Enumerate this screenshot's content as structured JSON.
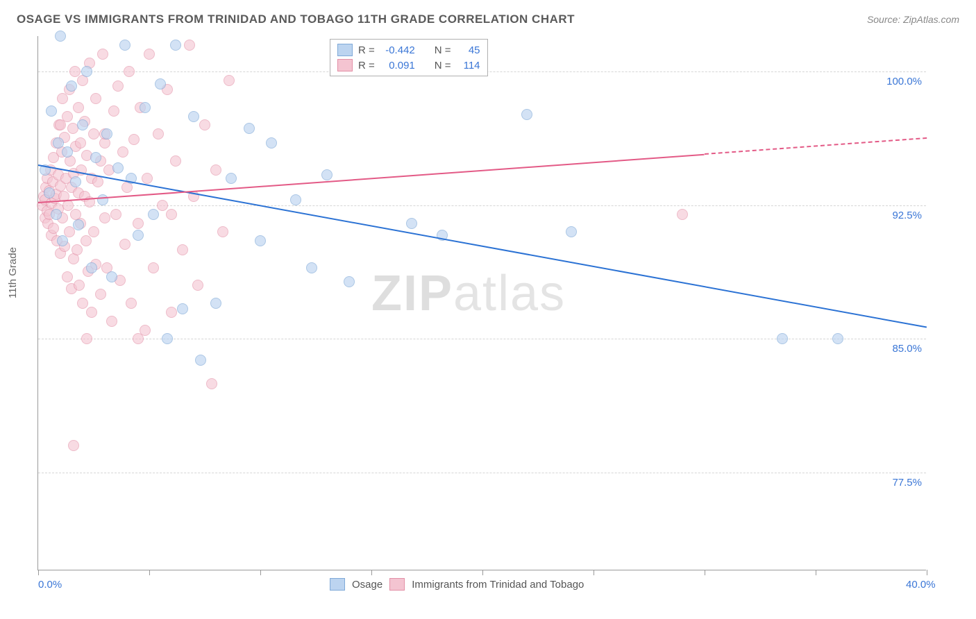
{
  "title": "OSAGE VS IMMIGRANTS FROM TRINIDAD AND TOBAGO 11TH GRADE CORRELATION CHART",
  "source_label": "Source: ZipAtlas.com",
  "yaxis_label": "11th Grade",
  "watermark_1": "ZIP",
  "watermark_2": "atlas",
  "chart": {
    "type": "scatter",
    "xlim": [
      0,
      40
    ],
    "ylim": [
      72,
      102
    ],
    "x_ticks": [
      0,
      5,
      10,
      15,
      20,
      25,
      30,
      35,
      40
    ],
    "x_tick_labels": {
      "0": "0.0%",
      "40": "40.0%"
    },
    "y_gridlines": [
      77.5,
      85.0,
      92.5,
      100.0
    ],
    "y_tick_labels": [
      "77.5%",
      "85.0%",
      "92.5%",
      "100.0%"
    ],
    "background_color": "#ffffff",
    "grid_color": "#d5d5d5",
    "axis_color": "#999999",
    "label_color": "#3a76d6",
    "marker_radius": 8,
    "series": [
      {
        "name": "Osage",
        "fill": "#bcd4f0",
        "stroke": "#7fa9d8",
        "fill_opacity": 0.65,
        "R": "-0.442",
        "N": "45",
        "trend": {
          "x1": 0,
          "y1": 94.8,
          "x2": 40,
          "y2": 85.7,
          "color": "#2b72d4",
          "width": 2
        },
        "points": [
          [
            0.3,
            94.5
          ],
          [
            0.5,
            93.2
          ],
          [
            0.6,
            97.8
          ],
          [
            0.8,
            92.0
          ],
          [
            0.9,
            96.0
          ],
          [
            1.0,
            102.0
          ],
          [
            1.1,
            90.5
          ],
          [
            1.3,
            95.5
          ],
          [
            1.5,
            99.2
          ],
          [
            1.7,
            93.8
          ],
          [
            1.8,
            91.4
          ],
          [
            2.0,
            97.0
          ],
          [
            2.2,
            100.0
          ],
          [
            2.4,
            89.0
          ],
          [
            2.6,
            95.2
          ],
          [
            2.9,
            92.8
          ],
          [
            3.1,
            96.5
          ],
          [
            3.3,
            88.5
          ],
          [
            3.6,
            94.6
          ],
          [
            3.9,
            101.5
          ],
          [
            4.2,
            94.0
          ],
          [
            4.5,
            90.8
          ],
          [
            4.8,
            98.0
          ],
          [
            5.2,
            92.0
          ],
          [
            5.5,
            99.3
          ],
          [
            5.8,
            85.0
          ],
          [
            6.2,
            101.5
          ],
          [
            6.5,
            86.7
          ],
          [
            7.0,
            97.5
          ],
          [
            7.3,
            83.8
          ],
          [
            8.0,
            87.0
          ],
          [
            8.7,
            94.0
          ],
          [
            9.5,
            96.8
          ],
          [
            10.0,
            90.5
          ],
          [
            10.5,
            96.0
          ],
          [
            11.6,
            92.8
          ],
          [
            12.3,
            89.0
          ],
          [
            13.0,
            94.2
          ],
          [
            14.0,
            88.2
          ],
          [
            16.8,
            91.5
          ],
          [
            18.2,
            90.8
          ],
          [
            22.0,
            97.6
          ],
          [
            24.0,
            91.0
          ],
          [
            33.5,
            85.0
          ],
          [
            36.0,
            85.0
          ]
        ]
      },
      {
        "name": "Immigrants from Trinidad and Tobago",
        "fill": "#f4c4d1",
        "stroke": "#e38fa6",
        "fill_opacity": 0.6,
        "R": "0.091",
        "N": "114",
        "trend": {
          "x1": 0,
          "y1": 92.7,
          "x2": 40,
          "y2": 96.3,
          "color": "#e35a86",
          "width": 2,
          "dash_from_x": 30
        },
        "points": [
          [
            0.2,
            92.5
          ],
          [
            0.25,
            93.0
          ],
          [
            0.3,
            92.8
          ],
          [
            0.3,
            91.8
          ],
          [
            0.35,
            93.5
          ],
          [
            0.4,
            92.2
          ],
          [
            0.4,
            94.0
          ],
          [
            0.45,
            91.5
          ],
          [
            0.5,
            93.3
          ],
          [
            0.5,
            92.0
          ],
          [
            0.55,
            94.5
          ],
          [
            0.6,
            92.6
          ],
          [
            0.6,
            90.8
          ],
          [
            0.65,
            93.8
          ],
          [
            0.7,
            95.2
          ],
          [
            0.7,
            91.2
          ],
          [
            0.75,
            92.9
          ],
          [
            0.8,
            96.0
          ],
          [
            0.8,
            93.1
          ],
          [
            0.85,
            90.5
          ],
          [
            0.9,
            94.2
          ],
          [
            0.9,
            92.3
          ],
          [
            0.95,
            97.0
          ],
          [
            1.0,
            93.6
          ],
          [
            1.0,
            89.8
          ],
          [
            1.05,
            95.5
          ],
          [
            1.1,
            91.8
          ],
          [
            1.1,
            98.5
          ],
          [
            1.15,
            93.0
          ],
          [
            1.2,
            90.2
          ],
          [
            1.2,
            96.3
          ],
          [
            1.25,
            94.0
          ],
          [
            1.3,
            88.5
          ],
          [
            1.3,
            97.5
          ],
          [
            1.35,
            92.5
          ],
          [
            1.4,
            99.0
          ],
          [
            1.4,
            91.0
          ],
          [
            1.45,
            95.0
          ],
          [
            1.5,
            93.5
          ],
          [
            1.5,
            87.8
          ],
          [
            1.55,
            96.8
          ],
          [
            1.6,
            94.3
          ],
          [
            1.6,
            89.5
          ],
          [
            1.65,
            100.0
          ],
          [
            1.7,
            92.0
          ],
          [
            1.7,
            95.8
          ],
          [
            1.75,
            90.0
          ],
          [
            1.8,
            98.0
          ],
          [
            1.8,
            93.2
          ],
          [
            1.85,
            88.0
          ],
          [
            1.9,
            96.0
          ],
          [
            1.9,
            91.5
          ],
          [
            1.95,
            94.5
          ],
          [
            2.0,
            99.5
          ],
          [
            2.0,
            87.0
          ],
          [
            2.1,
            93.0
          ],
          [
            2.1,
            97.2
          ],
          [
            2.15,
            90.5
          ],
          [
            2.2,
            95.3
          ],
          [
            2.25,
            88.8
          ],
          [
            2.3,
            92.7
          ],
          [
            2.3,
            100.5
          ],
          [
            2.4,
            94.0
          ],
          [
            2.4,
            86.5
          ],
          [
            2.5,
            96.5
          ],
          [
            2.5,
            91.0
          ],
          [
            2.6,
            98.5
          ],
          [
            2.6,
            89.2
          ],
          [
            2.7,
            93.8
          ],
          [
            2.8,
            95.0
          ],
          [
            2.8,
            87.5
          ],
          [
            2.9,
            101.0
          ],
          [
            3.0,
            91.8
          ],
          [
            3.0,
            96.0
          ],
          [
            3.1,
            89.0
          ],
          [
            3.2,
            94.5
          ],
          [
            3.3,
            86.0
          ],
          [
            3.4,
            97.8
          ],
          [
            3.5,
            92.0
          ],
          [
            3.6,
            99.2
          ],
          [
            3.7,
            88.3
          ],
          [
            3.8,
            95.5
          ],
          [
            3.9,
            90.3
          ],
          [
            4.0,
            93.5
          ],
          [
            4.1,
            100.0
          ],
          [
            4.2,
            87.0
          ],
          [
            4.3,
            96.2
          ],
          [
            4.5,
            91.5
          ],
          [
            4.6,
            98.0
          ],
          [
            4.8,
            85.5
          ],
          [
            4.9,
            94.0
          ],
          [
            5.0,
            101.0
          ],
          [
            5.2,
            89.0
          ],
          [
            5.4,
            96.5
          ],
          [
            5.6,
            92.5
          ],
          [
            5.8,
            99.0
          ],
          [
            6.0,
            86.5
          ],
          [
            6.2,
            95.0
          ],
          [
            6.5,
            90.0
          ],
          [
            6.8,
            101.5
          ],
          [
            7.0,
            93.0
          ],
          [
            7.2,
            88.0
          ],
          [
            7.5,
            97.0
          ],
          [
            7.8,
            82.5
          ],
          [
            8.0,
            94.5
          ],
          [
            8.3,
            91.0
          ],
          [
            8.6,
            99.5
          ],
          [
            1.6,
            79.0
          ],
          [
            4.5,
            85.0
          ],
          [
            6.0,
            92.0
          ],
          [
            2.2,
            85.0
          ],
          [
            3.0,
            96.5
          ],
          [
            29.0,
            92.0
          ],
          [
            1.0,
            97.0
          ]
        ]
      }
    ]
  },
  "legend_bottom": [
    {
      "label": "Osage",
      "fill": "#bcd4f0",
      "stroke": "#7fa9d8"
    },
    {
      "label": "Immigrants from Trinidad and Tobago",
      "fill": "#f4c4d1",
      "stroke": "#e38fa6"
    }
  ],
  "legend_top": {
    "rows": [
      {
        "swatch_fill": "#bcd4f0",
        "swatch_stroke": "#7fa9d8",
        "r_label": "R =",
        "r_val": "-0.442",
        "n_label": "N =",
        "n_val": "45"
      },
      {
        "swatch_fill": "#f4c4d1",
        "swatch_stroke": "#e38fa6",
        "r_label": "R =",
        "r_val": "0.091",
        "n_label": "N =",
        "n_val": "114"
      }
    ]
  }
}
